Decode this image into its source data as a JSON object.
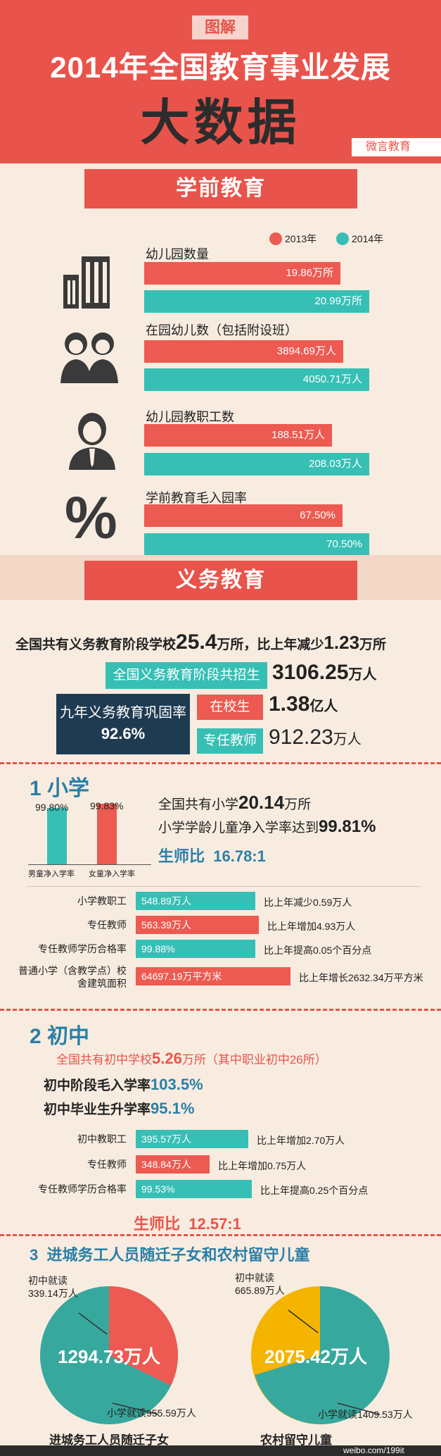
{
  "header": {
    "tag": "图解",
    "title": "2014年全国教育事业发展",
    "big": "大数据",
    "corner": "微言教育"
  },
  "preschool": {
    "banner": "学前教育",
    "legend": [
      "2013年",
      "2014年"
    ],
    "colors": {
      "y2013": "#ec5a51",
      "y2014": "#37bfb5"
    },
    "icons": [
      "building-icon",
      "children-icon",
      "teacher-icon",
      "percent-icon"
    ],
    "percent_symbol": "%"
  },
  "chart_data": {
    "type": "bar",
    "categories": [
      "幼儿园数量",
      "在园幼儿数（包括附设班）",
      "幼儿园教职工数",
      "学前教育毛入园率"
    ],
    "series": [
      {
        "name": "2013年",
        "values": [
          19.86,
          3894.69,
          188.51,
          67.5
        ],
        "labels": [
          "19.86万所",
          "3894.69万人",
          "188.51万人",
          "67.50%"
        ]
      },
      {
        "name": "2014年",
        "values": [
          20.99,
          4050.71,
          208.03,
          70.5
        ],
        "labels": [
          "20.99万所",
          "4050.71万人",
          "208.03万人",
          "70.50%"
        ]
      }
    ]
  },
  "compulsory": {
    "banner": "义务教育",
    "line1_pre": "全国共有义务教育阶段学校",
    "line1_num": "25.4",
    "line1_mid": "万所，比上年减少",
    "line1_num2": "1.23",
    "line1_post": "万所",
    "enroll_label": "全国义务教育阶段共招生",
    "enroll_num": "3106.25",
    "enroll_unit": "万人",
    "retention_label": "九年义务教育巩固率",
    "retention_value": "92.6%",
    "students_label": "在校生",
    "students_num": "1.38",
    "students_unit": "亿人",
    "teachers_label": "专任教师",
    "teachers_num": "912.23",
    "teachers_unit": "万人"
  },
  "primary": {
    "heading_num": "1",
    "heading": "小学",
    "boy_rate": "99.80%",
    "girl_rate": "99.83%",
    "boy_value": 99.8,
    "girl_value": 99.83,
    "boy_label": "男童净入学率",
    "girl_label": "女童净入学率",
    "line1_pre": "全国共有小学",
    "line1_num": "20.14",
    "line1_post": "万所",
    "line2_pre": "小学学龄儿童净入学率达到",
    "line2_num": "99.81%",
    "ratio_label": "生师比",
    "ratio_value": "16.78:1",
    "rows": [
      {
        "label": "小学教职工",
        "value": "548.89万人",
        "comment": "比上年减少0.59万人"
      },
      {
        "label": "专任教师",
        "value": "563.39万人",
        "comment": "比上年增加4.93万人"
      },
      {
        "label": "专任教师学历合格率",
        "value": "99.88%",
        "comment": "比上年提高0.05个百分点"
      },
      {
        "label": "普通小学（含教学点）校舍建筑面积",
        "value": "64697.19万平方米",
        "comment": "比上年增长2632.34万平方米"
      }
    ]
  },
  "middle": {
    "heading_num": "2",
    "heading": "初中",
    "line1_pre": "全国共有初中学校",
    "line1_num": "5.26",
    "line1_post": "万所（其中职业初中26所）",
    "line2_pre": "初中阶段毛入学率",
    "line2_num": "103.5%",
    "line3_pre": "初中毕业生升学率",
    "line3_num": "95.1%",
    "ratio_label": "生师比",
    "ratio_value": "12.57:1",
    "rows": [
      {
        "label": "初中教职工",
        "value": "395.57万人",
        "comment": "比上年增加2.70万人"
      },
      {
        "label": "专任教师",
        "value": "348.84万人",
        "comment": "比上年增加0.75万人"
      },
      {
        "label": "专任教师学历合格率",
        "value": "99.53%",
        "comment": "比上年提高0.25个百分点"
      }
    ]
  },
  "migrant": {
    "heading_num": "3",
    "heading": "进城务工人员随迁子女和农村留守儿童",
    "pie1": {
      "middle_label": "初中就读",
      "middle_value": "339.14万人",
      "total": "1294.73万人",
      "primary_label": "小学就读955.59万人",
      "caption": "进城务工人员随迁子女"
    },
    "pie2": {
      "middle_label": "初中就读",
      "middle_value": "665.89万人",
      "total": "2075.42万人",
      "primary_label": "小学就读1409.53万人",
      "caption": "农村留守儿童"
    },
    "footer": "weibo.com/199it"
  }
}
